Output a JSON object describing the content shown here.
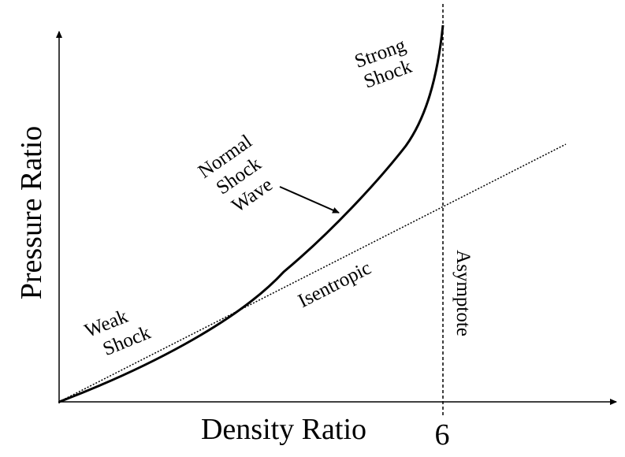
{
  "axes": {
    "y_label": "Pressure Ratio",
    "x_label": "Density Ratio",
    "x_tick": "6"
  },
  "annotations": {
    "strong_shock": [
      "Strong",
      "Shock"
    ],
    "normal_shock_wave": [
      "Normal",
      "Shock",
      "Wave"
    ],
    "weak_shock": [
      "Weak",
      "Shock"
    ],
    "isentropic": "Isentropic",
    "asymptote": "Asymptote"
  }
}
